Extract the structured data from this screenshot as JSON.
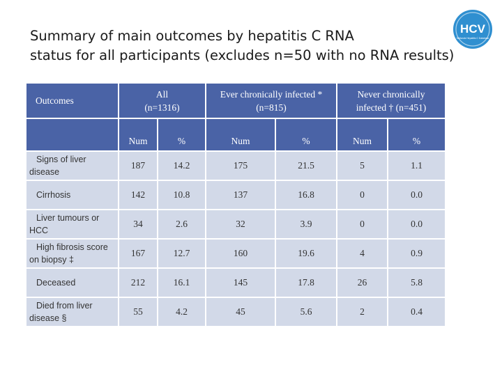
{
  "slide": {
    "title_line1": "Summary of main outcomes by hepatitis C RNA",
    "title_line2": "status for all participants (excludes n=50 with no RNA results)",
    "logo_text": "HCV",
    "logo_subtext": "Midlands Hepatitis C Database"
  },
  "table": {
    "header": {
      "outcomes": "Outcomes",
      "groups": [
        {
          "line1": "All",
          "line2": "(n=1316)"
        },
        {
          "line1": "Ever chronically infected *",
          "line2": "(n=815)"
        },
        {
          "line1": "Never chronically",
          "line2": "infected † (n=451)"
        }
      ],
      "sub": [
        "Num",
        "%",
        "Num",
        "%",
        "Num",
        "%"
      ]
    },
    "rows": [
      {
        "label1": "Signs of liver",
        "label2": "disease",
        "values": [
          "187",
          "14.2",
          "175",
          "21.5",
          "5",
          "1.1"
        ]
      },
      {
        "label1": "Cirrhosis",
        "label2": "",
        "values": [
          "142",
          "10.8",
          "137",
          "16.8",
          "0",
          "0.0"
        ]
      },
      {
        "label1": "Liver tumours or",
        "label2": "HCC",
        "values": [
          "34",
          "2.6",
          "32",
          "3.9",
          "0",
          "0.0"
        ]
      },
      {
        "label1": "High fibrosis score",
        "label2": "on biopsy ‡",
        "values": [
          "167",
          "12.7",
          "160",
          "19.6",
          "4",
          "0.9"
        ]
      },
      {
        "label1": "Deceased",
        "label2": "",
        "values": [
          "212",
          "16.1",
          "145",
          "17.8",
          "26",
          "5.8"
        ]
      },
      {
        "label1": "Died from liver",
        "label2": "disease §",
        "values": [
          "55",
          "4.2",
          "45",
          "5.6",
          "2",
          "0.4"
        ]
      }
    ]
  },
  "colors": {
    "header_fill": "#4a63a6",
    "body_fill": "#d2d9e8",
    "logo_fill": "#2f8fd0"
  }
}
